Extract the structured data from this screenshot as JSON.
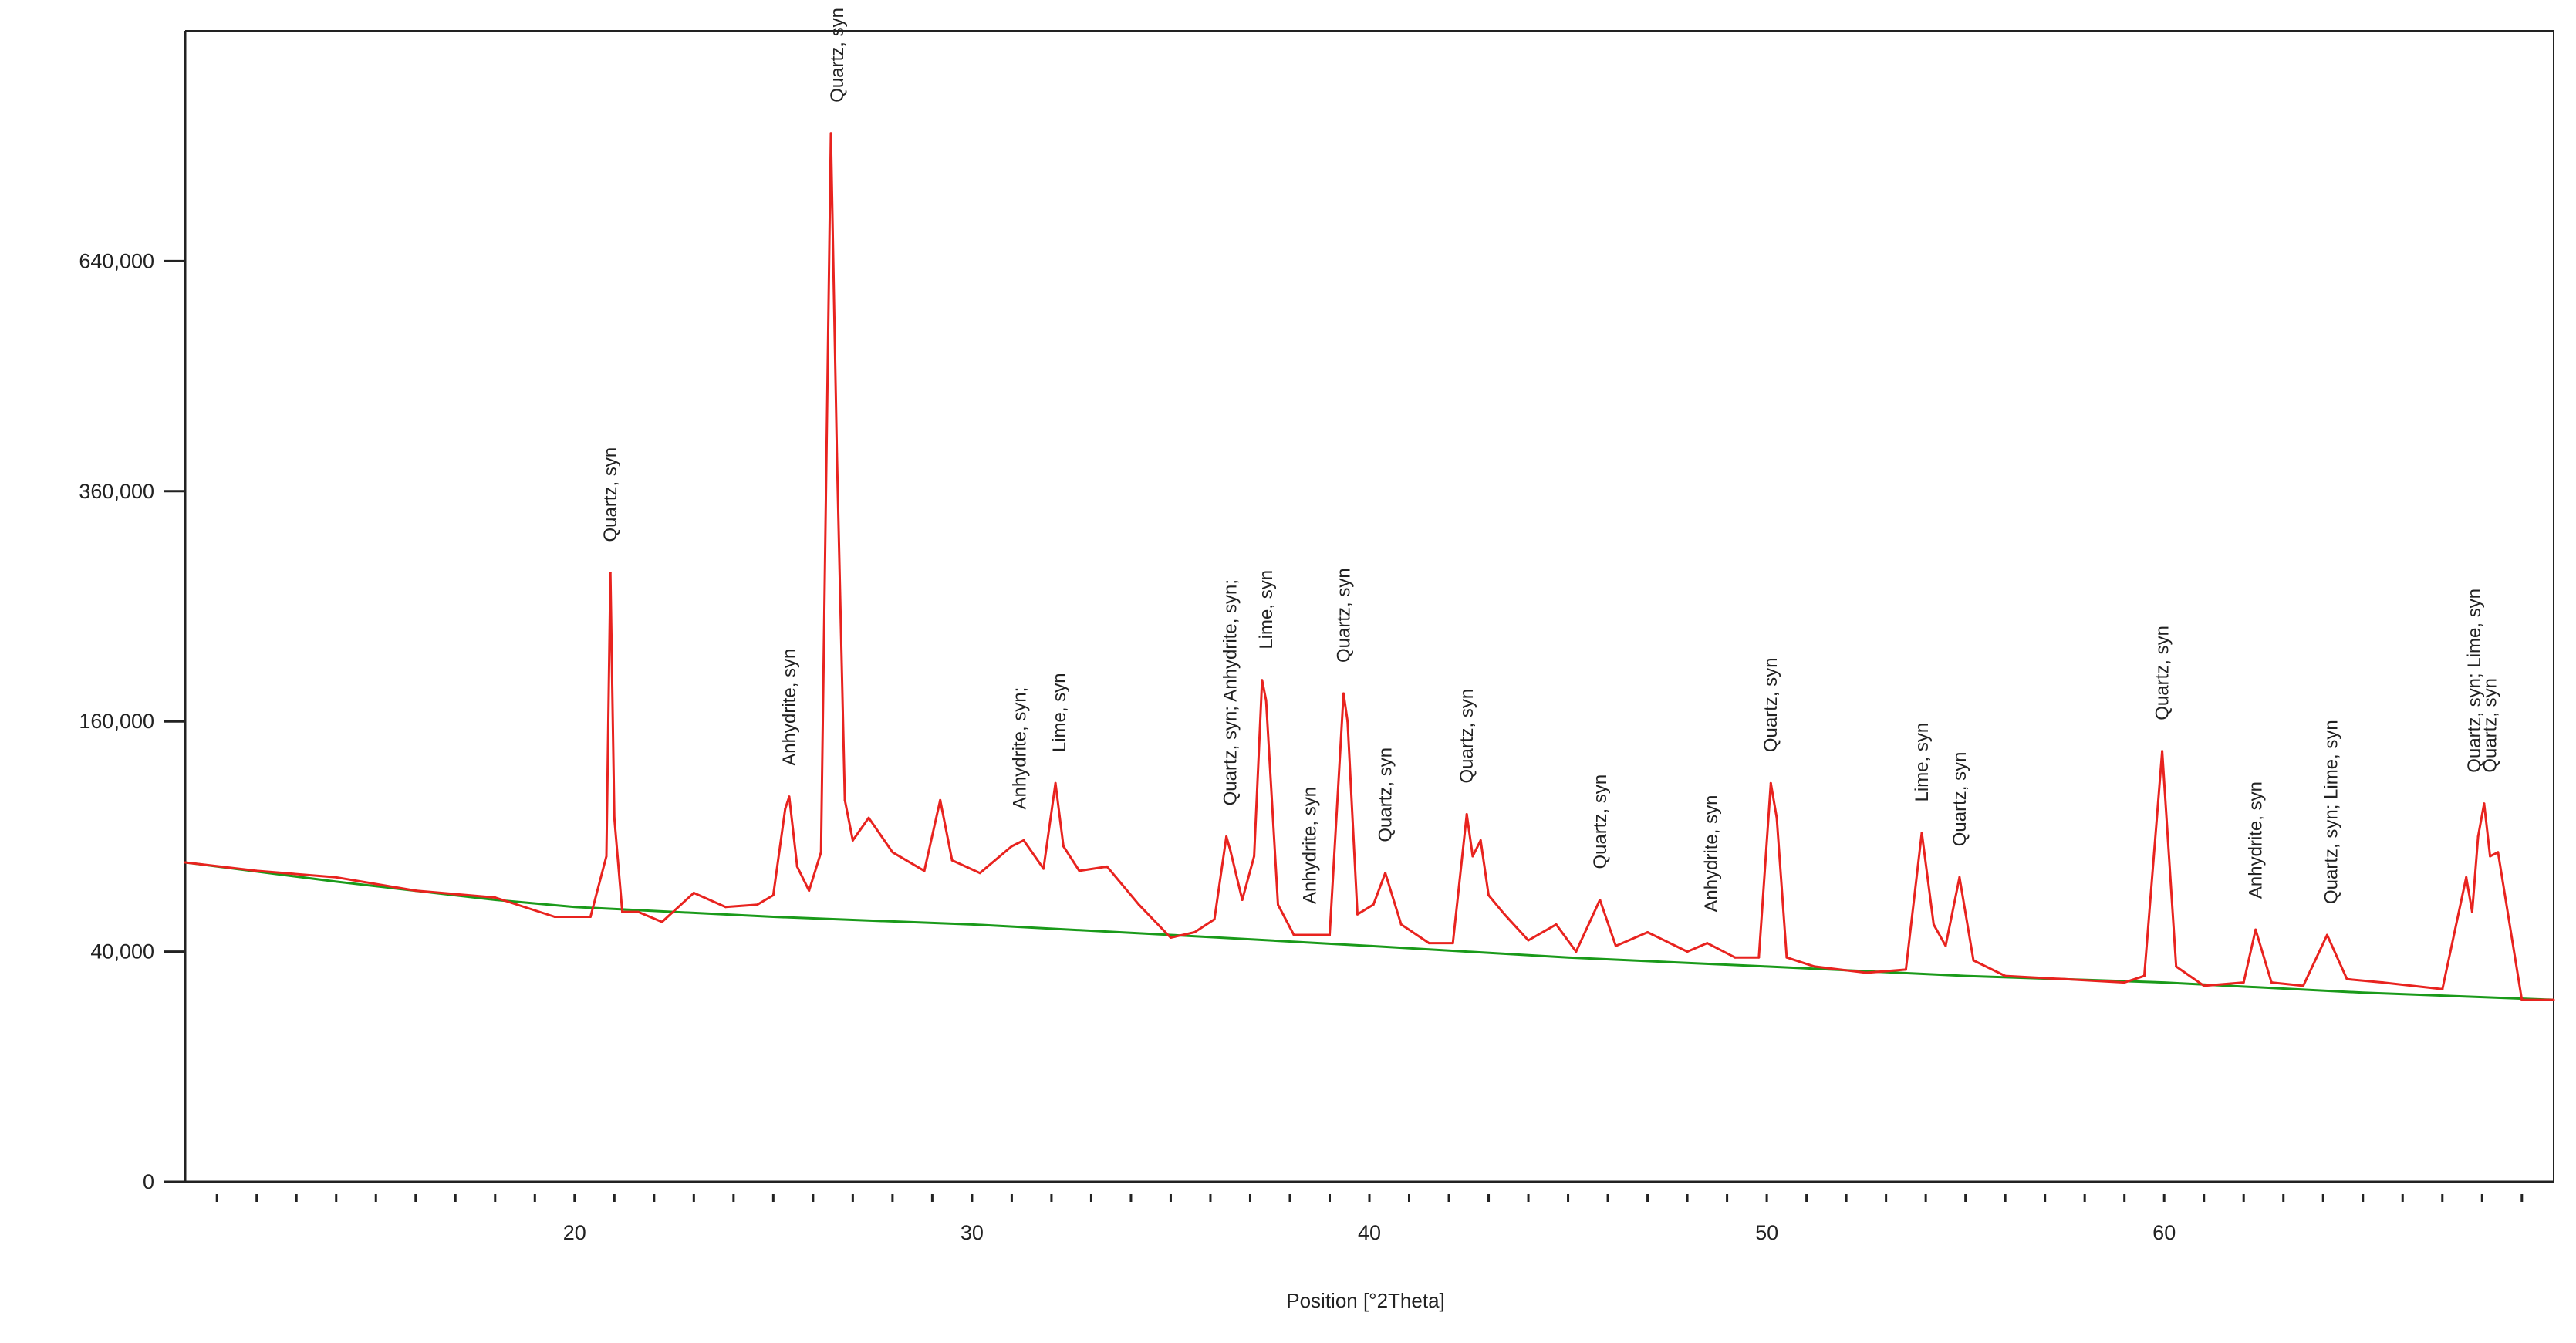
{
  "chart_data": {
    "type": "line",
    "title": "",
    "xlabel": "Position [°2Theta]",
    "ylabel": "",
    "x_ticks": [
      20,
      30,
      40,
      50,
      60
    ],
    "y_ticks": [
      {
        "value": 0,
        "label": "0"
      },
      {
        "value": 40000,
        "label": "40,000"
      },
      {
        "value": 160000,
        "label": "160,000"
      },
      {
        "value": 360000,
        "label": "360,000"
      },
      {
        "value": 640000,
        "label": "640,000"
      }
    ],
    "y_scale": "sqrt",
    "xlim": [
      10.2,
      69.8
    ],
    "ylim": [
      0,
      1000000
    ],
    "grid": false,
    "legend": "none",
    "colors": {
      "measured": "#e8231f",
      "background": "#1a9a1a",
      "axis": "#222222"
    },
    "series": [
      {
        "role": "measured",
        "x": [
          10.2,
          12,
          14,
          16,
          18,
          19.5,
          20.4,
          20.8,
          20.9,
          21.0,
          21.2,
          21.6,
          22.2,
          23.0,
          23.8,
          24.6,
          25.0,
          25.3,
          25.4,
          25.6,
          25.9,
          26.2,
          26.45,
          26.6,
          26.8,
          27.0,
          27.4,
          28.0,
          28.8,
          29.2,
          29.5,
          30.2,
          31.0,
          31.3,
          31.8,
          32.1,
          32.3,
          32.7,
          33.4,
          34.2,
          35.0,
          35.6,
          36.1,
          36.4,
          36.5,
          36.8,
          37.1,
          37.3,
          37.4,
          37.7,
          38.1,
          38.5,
          39.0,
          39.35,
          39.45,
          39.7,
          40.1,
          40.4,
          40.8,
          41.5,
          42.1,
          42.45,
          42.6,
          42.8,
          43.0,
          43.4,
          44.0,
          44.7,
          45.2,
          45.8,
          46.2,
          47.0,
          48.0,
          48.5,
          49.2,
          49.8,
          50.1,
          50.25,
          50.5,
          51.2,
          52.5,
          53.5,
          53.9,
          54.2,
          54.5,
          54.85,
          55.2,
          56.0,
          57.5,
          59.0,
          59.5,
          59.95,
          60.3,
          61.0,
          62.0,
          62.3,
          62.7,
          63.5,
          64.1,
          64.6,
          65.5,
          67.0,
          67.6,
          67.75,
          67.9,
          68.05,
          68.2,
          68.4,
          69.0,
          69.8
        ],
        "y": [
          77000,
          73000,
          70000,
          64000,
          61000,
          53000,
          53000,
          80000,
          280000,
          100000,
          55000,
          55000,
          51000,
          63000,
          57000,
          58000,
          62000,
          105000,
          112000,
          75000,
          64000,
          82000,
          830000,
          400000,
          110000,
          88000,
          100000,
          82000,
          73000,
          110000,
          78000,
          72000,
          85000,
          88000,
          74000,
          120000,
          85000,
          73000,
          75000,
          58000,
          45000,
          47000,
          52000,
          90000,
          83000,
          60000,
          80000,
          190000,
          175000,
          58000,
          46000,
          46000,
          46000,
          180000,
          160000,
          54000,
          58000,
          72000,
          50000,
          43000,
          43000,
          102000,
          80000,
          88000,
          62000,
          54000,
          44000,
          50000,
          40000,
          60000,
          42000,
          47000,
          40000,
          43000,
          38000,
          38000,
          120000,
          100000,
          38000,
          35000,
          33000,
          34000,
          92000,
          50000,
          42000,
          70000,
          37000,
          32000,
          31000,
          30000,
          32000,
          140000,
          35000,
          29000,
          30000,
          48000,
          30000,
          29000,
          46000,
          31000,
          30000,
          28000,
          70000,
          55000,
          90000,
          108000,
          80000,
          82000,
          25000,
          25000
        ]
      },
      {
        "role": "background",
        "x": [
          10.2,
          14,
          18,
          20,
          25,
          30,
          35,
          40,
          45,
          50,
          55,
          60,
          65,
          69.8
        ],
        "y": [
          77000,
          68000,
          60000,
          57000,
          53000,
          50000,
          46000,
          42000,
          38000,
          35000,
          32000,
          30000,
          27000,
          25000
        ]
      }
    ],
    "annotations": [
      {
        "x": 20.9,
        "text": "Quartz, syn"
      },
      {
        "x": 25.4,
        "text": "Anhydrite, syn"
      },
      {
        "x": 26.6,
        "text": "Quartz, syn"
      },
      {
        "x": 31.2,
        "text": "Anhydrite, syn;"
      },
      {
        "x": 32.2,
        "text": "Lime, syn"
      },
      {
        "x": 36.5,
        "text": "Quartz, syn; Anhydrite, syn;"
      },
      {
        "x": 37.4,
        "text": "Lime, syn"
      },
      {
        "x": 38.5,
        "text": "Anhydrite, syn"
      },
      {
        "x": 39.35,
        "text": "Quartz, syn"
      },
      {
        "x": 40.4,
        "text": "Quartz, syn"
      },
      {
        "x": 42.45,
        "text": "Quartz, syn"
      },
      {
        "x": 45.8,
        "text": "Quartz, syn"
      },
      {
        "x": 48.6,
        "text": "Anhydrite, syn"
      },
      {
        "x": 50.1,
        "text": "Quartz, syn"
      },
      {
        "x": 53.9,
        "text": "Lime, syn"
      },
      {
        "x": 54.85,
        "text": "Quartz, syn"
      },
      {
        "x": 59.95,
        "text": "Quartz, syn"
      },
      {
        "x": 62.3,
        "text": "Anhydrite, syn"
      },
      {
        "x": 64.2,
        "text": "Quartz, syn; Lime, syn"
      },
      {
        "x": 67.8,
        "text": "Quartz, syn; Lime, syn"
      },
      {
        "x": 68.2,
        "text": "Quartz, syn"
      }
    ]
  }
}
